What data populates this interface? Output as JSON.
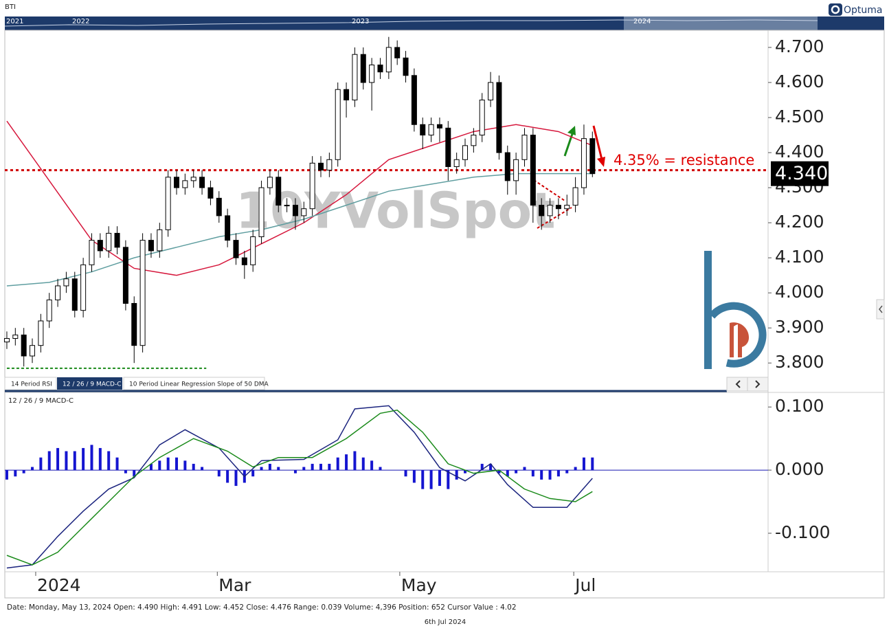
{
  "header": {
    "symbol": "BTI",
    "navigator_years": [
      "2021",
      "2022",
      "2023",
      "2024"
    ],
    "brand": "Optuma"
  },
  "tabs": [
    "14 Period RSI",
    "12 / 26 / 9 MACD-C",
    "10 Period Linear Regression Slope of 50 DMA"
  ],
  "status": "Date: Monday, May 13, 2024 Open: 4.490 High: 4.491 Low: 4.452 Close: 4.476 Range: 0.039 Volume: 4,396 Position: 652 Cursor Value : 4.02",
  "footer": "6th Jul 2024",
  "chart_data": [
    {
      "type": "candlestick",
      "watermark": "10YVolSpot",
      "annotation": "4.35% = resistance",
      "x": [
        0,
        1,
        2,
        3,
        4,
        5,
        6,
        7,
        8,
        9,
        10,
        11,
        12,
        13,
        14,
        15,
        16,
        17,
        18,
        19,
        20,
        21,
        22,
        23,
        24,
        25,
        26,
        27,
        28,
        29,
        30,
        31,
        32,
        33,
        34,
        35,
        36,
        37,
        38,
        39,
        40,
        41,
        42,
        43,
        44,
        45,
        46,
        47,
        48,
        49,
        50,
        51,
        52,
        53,
        54,
        55,
        56,
        57,
        58,
        59,
        60,
        61,
        62,
        63,
        64,
        65,
        66,
        67,
        68,
        69
      ],
      "open": [
        3.86,
        3.87,
        3.88,
        3.82,
        3.85,
        3.92,
        3.98,
        4.02,
        4.04,
        3.95,
        4.08,
        4.15,
        4.12,
        4.17,
        4.13,
        3.97,
        3.85,
        4.15,
        4.12,
        4.18,
        4.33,
        4.3,
        4.32,
        4.33,
        4.3,
        4.27,
        4.22,
        4.15,
        4.1,
        4.08,
        4.16,
        4.3,
        4.33,
        4.25,
        4.25,
        4.22,
        4.24,
        4.37,
        4.35,
        4.38,
        4.58,
        4.55,
        4.68,
        4.6,
        4.65,
        4.63,
        4.7,
        4.67,
        4.62,
        4.48,
        4.45,
        4.48,
        4.47,
        4.36,
        4.38,
        4.42,
        4.45,
        4.55,
        4.6,
        4.4,
        4.32,
        4.38,
        4.45,
        4.25,
        4.22,
        4.25,
        4.24,
        4.25,
        4.3,
        4.44
      ],
      "high": [
        3.89,
        3.9,
        3.9,
        3.87,
        3.94,
        4.0,
        4.04,
        4.06,
        4.06,
        4.1,
        4.17,
        4.17,
        4.19,
        4.19,
        4.15,
        3.99,
        4.17,
        4.17,
        4.2,
        4.35,
        4.35,
        4.34,
        4.35,
        4.35,
        4.32,
        4.29,
        4.24,
        4.17,
        4.12,
        4.18,
        4.32,
        4.35,
        4.35,
        4.27,
        4.27,
        4.26,
        4.39,
        4.39,
        4.4,
        4.6,
        4.6,
        4.7,
        4.7,
        4.67,
        4.67,
        4.73,
        4.72,
        4.69,
        4.64,
        4.5,
        4.5,
        4.5,
        4.49,
        4.4,
        4.44,
        4.47,
        4.57,
        4.63,
        4.62,
        4.42,
        4.4,
        4.47,
        4.47,
        4.27,
        4.27,
        4.27,
        4.28,
        4.33,
        4.48,
        4.46
      ],
      "low": [
        3.84,
        3.85,
        3.79,
        3.8,
        3.83,
        3.9,
        3.96,
        4.0,
        3.93,
        3.93,
        4.06,
        4.1,
        4.1,
        4.11,
        3.95,
        3.8,
        3.83,
        4.1,
        4.1,
        4.16,
        4.28,
        4.28,
        4.3,
        4.28,
        4.25,
        4.2,
        4.13,
        4.08,
        4.04,
        4.06,
        4.14,
        4.28,
        4.23,
        4.23,
        4.18,
        4.2,
        4.22,
        4.33,
        4.33,
        4.36,
        4.5,
        4.53,
        4.58,
        4.52,
        4.61,
        4.61,
        4.65,
        4.6,
        4.46,
        4.41,
        4.43,
        4.43,
        4.32,
        4.34,
        4.36,
        4.4,
        4.43,
        4.53,
        4.38,
        4.28,
        4.28,
        4.36,
        4.2,
        4.18,
        4.2,
        4.21,
        4.22,
        4.23,
        4.28,
        4.33
      ],
      "close": [
        3.87,
        3.88,
        3.82,
        3.85,
        3.92,
        3.98,
        4.02,
        4.04,
        3.95,
        4.08,
        4.15,
        4.12,
        4.17,
        4.13,
        3.97,
        3.85,
        4.15,
        4.12,
        4.18,
        4.33,
        4.3,
        4.32,
        4.33,
        4.3,
        4.27,
        4.22,
        4.15,
        4.1,
        4.08,
        4.16,
        4.3,
        4.33,
        4.25,
        4.25,
        4.22,
        4.24,
        4.37,
        4.35,
        4.38,
        4.58,
        4.55,
        4.68,
        4.6,
        4.65,
        4.63,
        4.7,
        4.67,
        4.62,
        4.48,
        4.45,
        4.48,
        4.47,
        4.36,
        4.38,
        4.42,
        4.45,
        4.55,
        4.6,
        4.4,
        4.32,
        4.38,
        4.45,
        4.25,
        4.22,
        4.25,
        4.24,
        4.25,
        4.3,
        4.44,
        4.34
      ],
      "series": [
        {
          "color": "#d6173c",
          "x": [
            0,
            5,
            10,
            15,
            20,
            25,
            30,
            35,
            40,
            45,
            50,
            55,
            60,
            65,
            69
          ],
          "values": [
            4.49,
            4.32,
            4.15,
            4.07,
            4.05,
            4.08,
            4.14,
            4.2,
            4.28,
            4.38,
            4.42,
            4.46,
            4.48,
            4.46,
            4.42
          ]
        },
        {
          "color": "#5f9ea0",
          "x": [
            0,
            5,
            10,
            15,
            20,
            25,
            30,
            35,
            40,
            45,
            50,
            55,
            60,
            65,
            69
          ],
          "values": [
            4.02,
            4.03,
            4.06,
            4.1,
            4.13,
            4.16,
            4.18,
            4.21,
            4.25,
            4.29,
            4.31,
            4.33,
            4.34,
            4.34,
            4.34
          ]
        }
      ],
      "levels": [
        {
          "value": 4.35,
          "color": "#d00000",
          "xlim": [
            -0.24,
            89.7
          ]
        },
        {
          "value": 3.785,
          "color": "#1a8a1a",
          "xlim": [
            0,
            23.5
          ]
        }
      ],
      "last_value": {
        "value": 4.34,
        "label": "4.340"
      },
      "xlim": [
        -0.24,
        89.7
      ],
      "xticks": [
        {
          "value": 3.4,
          "label": "2024"
        },
        {
          "value": 24.8,
          "label": "Mar"
        },
        {
          "value": 46.3,
          "label": "May"
        },
        {
          "value": 66.8,
          "label": "Jul"
        }
      ],
      "ylim": [
        3.722,
        4.749
      ],
      "yticks": [
        {
          "value": 3.8,
          "label": "3.800"
        },
        {
          "value": 3.9,
          "label": "3.900"
        },
        {
          "value": 4.0,
          "label": "4.000"
        },
        {
          "value": 4.1,
          "label": "4.100"
        },
        {
          "value": 4.2,
          "label": "4.200"
        },
        {
          "value": 4.3,
          "label": "4.300"
        },
        {
          "value": 4.4,
          "label": "4.400"
        },
        {
          "value": 4.5,
          "label": "4.500"
        },
        {
          "value": 4.6,
          "label": "4.600"
        },
        {
          "value": 4.7,
          "label": "4.700"
        }
      ]
    },
    {
      "type": "macd",
      "title": "12 / 26 / 9 MACD-C",
      "histogram": {
        "color": "#1515d0",
        "values": [
          -0.015,
          -0.01,
          -0.005,
          0.005,
          0.02,
          0.03,
          0.035,
          0.03,
          0.03,
          0.035,
          0.04,
          0.035,
          0.03,
          0.02,
          -0.005,
          -0.01,
          0,
          0.01,
          0.015,
          0.02,
          0.02,
          0.015,
          0.01,
          0.005,
          0,
          -0.01,
          -0.02,
          -0.025,
          -0.02,
          -0.01,
          0.005,
          0.01,
          0.005,
          0,
          -0.005,
          0.005,
          0.01,
          0.01,
          0.01,
          0.02,
          0.025,
          0.03,
          0.02,
          0.015,
          0.005,
          0,
          0,
          -0.01,
          -0.02,
          -0.03,
          -0.03,
          -0.025,
          -0.03,
          -0.015,
          -0.005,
          0,
          0.01,
          0.01,
          -0.005,
          -0.01,
          -0.005,
          0.005,
          -0.01,
          -0.015,
          -0.015,
          -0.01,
          -0.005,
          0.005,
          0.02,
          0.02
        ]
      },
      "series": [
        {
          "color": "#1a237e",
          "x": [
            0,
            3,
            6,
            9,
            12,
            15,
            18,
            21,
            25,
            28,
            30,
            35,
            39,
            41,
            45,
            48,
            51,
            54,
            57,
            59,
            62,
            66,
            69
          ],
          "values": [
            -0.155,
            -0.15,
            -0.105,
            -0.065,
            -0.03,
            -0.012,
            0.04,
            0.064,
            0.035,
            -0.01,
            0.015,
            0.017,
            0.048,
            0.097,
            0.102,
            0.06,
            0.004,
            -0.017,
            0.01,
            -0.023,
            -0.059,
            -0.059,
            -0.013
          ]
        },
        {
          "color": "#1a8a1a",
          "x": [
            0,
            3,
            6,
            9,
            12,
            15,
            18,
            22,
            26,
            29,
            32,
            36,
            40,
            44,
            46,
            49,
            52,
            55,
            58,
            61,
            64,
            67,
            69
          ],
          "values": [
            -0.135,
            -0.15,
            -0.13,
            -0.09,
            -0.05,
            -0.01,
            0.02,
            0.05,
            0.03,
            0.005,
            0.02,
            0.02,
            0.05,
            0.09,
            0.095,
            0.06,
            0.01,
            -0.005,
            0,
            -0.03,
            -0.045,
            -0.05,
            -0.034
          ]
        }
      ],
      "zero_line": 0,
      "ylim": [
        -0.161,
        0.122
      ],
      "yticks": [
        {
          "value": 0.1,
          "label": "0.100"
        },
        {
          "value": 0,
          "label": "0.000"
        },
        {
          "value": -0.1,
          "label": "-0.100"
        }
      ]
    }
  ]
}
